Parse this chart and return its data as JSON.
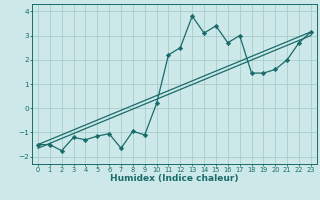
{
  "xlabel": "Humidex (Indice chaleur)",
  "bg_color": "#cce8e8",
  "grid_color": "#aacccc",
  "line_color": "#1a6b6b",
  "xlim": [
    -0.5,
    23.5
  ],
  "ylim": [
    -2.3,
    4.3
  ],
  "xticks": [
    0,
    1,
    2,
    3,
    4,
    5,
    6,
    7,
    8,
    9,
    10,
    11,
    12,
    13,
    14,
    15,
    16,
    17,
    18,
    19,
    20,
    21,
    22,
    23
  ],
  "yticks": [
    -2,
    -1,
    0,
    1,
    2,
    3,
    4
  ],
  "curve1_x": [
    0,
    1,
    2,
    3,
    4,
    5,
    6,
    7,
    8,
    9,
    10,
    11,
    12,
    13,
    14,
    15,
    16,
    17,
    18,
    19,
    20,
    21,
    22,
    23
  ],
  "curve1_y": [
    -1.5,
    -1.5,
    -1.75,
    -1.2,
    -1.3,
    -1.15,
    -1.05,
    -1.65,
    -0.95,
    -1.1,
    0.2,
    2.2,
    2.5,
    3.8,
    3.1,
    3.4,
    2.7,
    3.0,
    1.45,
    1.45,
    1.6,
    2.0,
    2.7,
    3.15
  ],
  "line1_x": [
    0,
    23
  ],
  "line1_y": [
    -1.5,
    3.15
  ],
  "line2_x": [
    0,
    23
  ],
  "line2_y": [
    -1.65,
    3.0
  ],
  "line3_x": [
    0,
    23
  ],
  "line3_y": [
    -1.5,
    3.15
  ],
  "marker": "D",
  "markersize": 2.2,
  "linewidth": 0.9,
  "xlabel_fontsize": 6.5,
  "tick_fontsize": 4.8
}
